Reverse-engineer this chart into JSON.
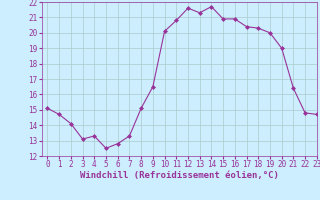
{
  "x": [
    0,
    1,
    2,
    3,
    4,
    5,
    6,
    7,
    8,
    9,
    10,
    11,
    12,
    13,
    14,
    15,
    16,
    17,
    18,
    19,
    20,
    21,
    22,
    23
  ],
  "y": [
    15.1,
    14.7,
    14.1,
    13.1,
    13.3,
    12.5,
    12.8,
    13.3,
    15.1,
    16.5,
    20.1,
    20.8,
    21.6,
    21.3,
    21.7,
    20.9,
    20.9,
    20.4,
    20.3,
    20.0,
    19.0,
    16.4,
    14.8,
    14.7
  ],
  "line_color": "#993399",
  "marker": "D",
  "marker_size": 2,
  "bg_color": "#cceeff",
  "grid_color": "#aacccc",
  "xlabel": "Windchill (Refroidissement éolien,°C)",
  "ylim": [
    12,
    22
  ],
  "xlim": [
    -0.5,
    23
  ],
  "yticks": [
    12,
    13,
    14,
    15,
    16,
    17,
    18,
    19,
    20,
    21,
    22
  ],
  "xticks": [
    0,
    1,
    2,
    3,
    4,
    5,
    6,
    7,
    8,
    9,
    10,
    11,
    12,
    13,
    14,
    15,
    16,
    17,
    18,
    19,
    20,
    21,
    22,
    23
  ],
  "tick_label_fontsize": 5.5,
  "xlabel_fontsize": 6.5,
  "line_width": 0.8
}
